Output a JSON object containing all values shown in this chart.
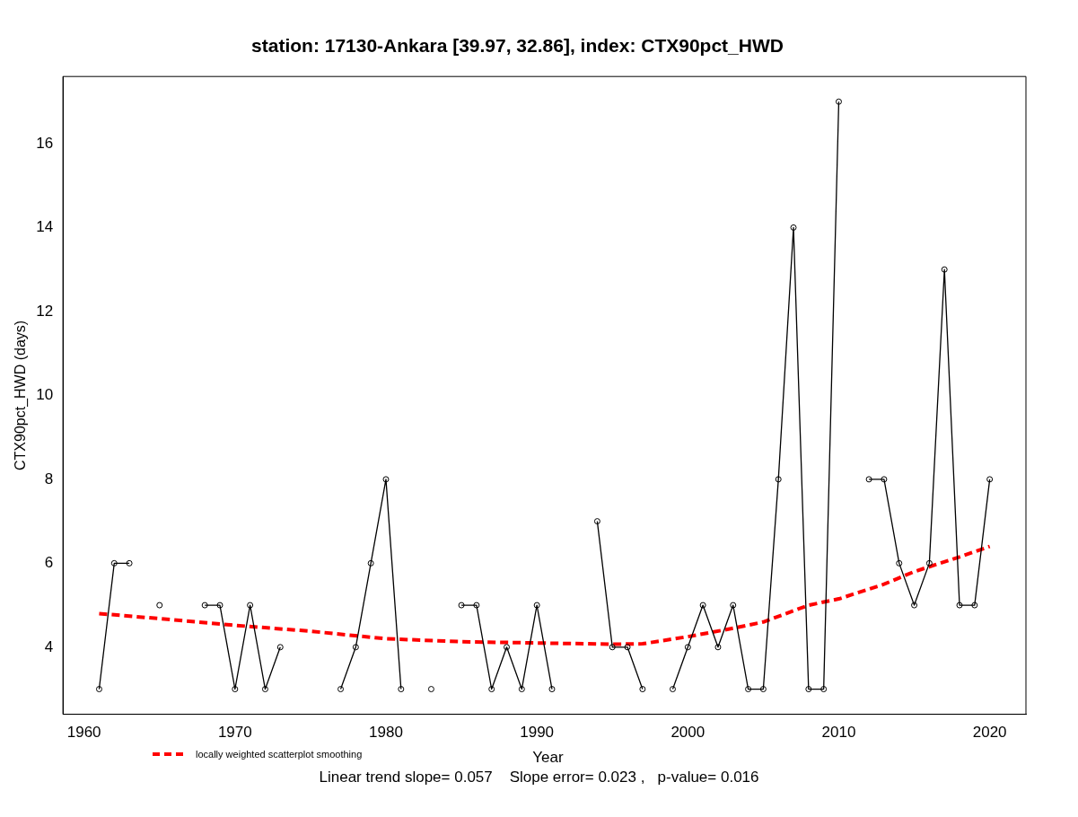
{
  "chart_data": {
    "type": "line",
    "title": "station: 17130-Ankara [39.97, 32.86], index: CTX90pct_HWD",
    "xlabel": "Year",
    "ylabel": "CTX90pct_HWD (days)",
    "annotations": [
      "Linear trend slope= 0.057    Slope error= 0.023 ,   p-value= 0.016"
    ],
    "x": [
      1961,
      1962,
      1963,
      1964,
      1965,
      1966,
      1967,
      1968,
      1969,
      1970,
      1971,
      1972,
      1973,
      1974,
      1975,
      1976,
      1977,
      1978,
      1979,
      1980,
      1981,
      1982,
      1983,
      1984,
      1985,
      1986,
      1987,
      1988,
      1989,
      1990,
      1991,
      1992,
      1993,
      1994,
      1995,
      1996,
      1997,
      1998,
      1999,
      2000,
      2001,
      2002,
      2003,
      2004,
      2005,
      2006,
      2007,
      2008,
      2009,
      2010,
      2011,
      2012,
      2013,
      2014,
      2015,
      2016,
      2017,
      2018,
      2019,
      2020
    ],
    "series": [
      {
        "color": "#000000",
        "values": [
          3,
          6,
          6,
          null,
          5,
          null,
          null,
          5,
          5,
          3,
          5,
          3,
          4,
          null,
          null,
          null,
          3,
          4,
          6,
          8,
          3,
          null,
          3,
          null,
          5,
          5,
          3,
          4,
          3,
          5,
          3,
          null,
          null,
          7,
          4,
          4,
          3,
          null,
          3,
          4,
          5,
          4,
          5,
          3,
          3,
          8,
          14,
          3,
          3,
          17,
          null,
          8,
          8,
          6,
          5,
          6,
          13,
          5,
          5,
          8
        ]
      },
      {
        "name": "locally weighted scatterplot smoothing",
        "color": "#ff0000",
        "marker": "none",
        "line_style": "dashed",
        "x": [
          1961,
          1965,
          1970,
          1975,
          1980,
          1985,
          1990,
          1995,
          1997,
          2000,
          2003,
          2005,
          2008,
          2010,
          2013,
          2015,
          2018,
          2020
        ],
        "values": [
          4.8,
          4.68,
          4.52,
          4.38,
          4.2,
          4.13,
          4.1,
          4.07,
          4.08,
          4.25,
          4.45,
          4.6,
          5.0,
          5.15,
          5.5,
          5.8,
          6.15,
          6.4
        ]
      }
    ],
    "xlim": [
      1958.6,
      2022.4
    ],
    "xticks": [
      1960,
      1970,
      1980,
      1990,
      2000,
      2010,
      2020
    ],
    "ylim": [
      2.4,
      17.6
    ],
    "yticks": [
      4,
      6,
      8,
      10,
      12,
      14,
      16
    ],
    "grid": false,
    "legend": "bottom left",
    "marker": "circle",
    "line_style": "solid"
  }
}
